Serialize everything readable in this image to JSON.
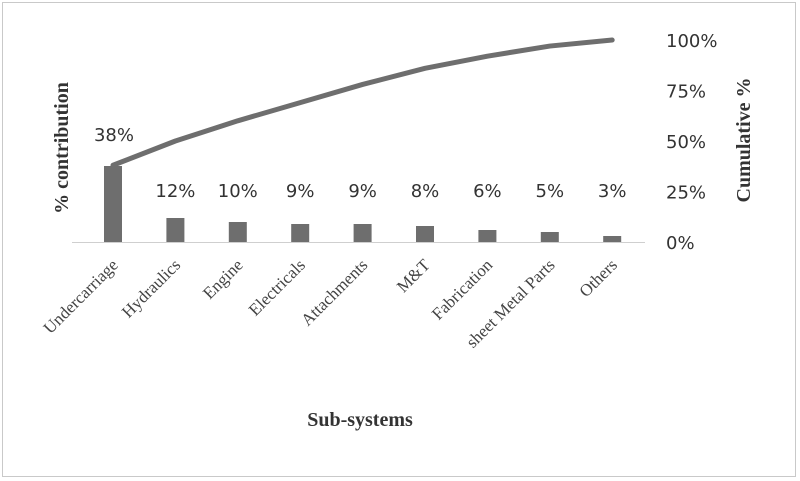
{
  "chart_data": {
    "type": "bar",
    "xlabel": "Sub-systems",
    "ylabel": "% contribution",
    "y2label": "Cumulative %",
    "categories": [
      "Undercarriage",
      "Hydraulics",
      "Engine",
      "Electricals",
      "Attachments",
      "M&T",
      "Fabrication",
      "sheet Metal Parts",
      "Others"
    ],
    "series": [
      {
        "values": [
          38,
          12,
          10,
          9,
          9,
          8,
          6,
          5,
          3
        ],
        "labels": [
          "38%",
          "12%",
          "10%",
          "9%",
          "9%",
          "8%",
          "6%",
          "5%",
          "3%"
        ]
      },
      {
        "type": "line",
        "axis": "right",
        "values": [
          38,
          50,
          60,
          69,
          78,
          86,
          92,
          97,
          100
        ]
      }
    ],
    "ylim": [
      0,
      100
    ],
    "y2lim": [
      0,
      100
    ],
    "y2ticks": [
      "0%",
      "25%",
      "50%",
      "75%",
      "100%"
    ],
    "colors": {
      "bars": "#6e6e6e",
      "line": "#6e6e6e"
    },
    "grid": false,
    "legend": "none"
  }
}
